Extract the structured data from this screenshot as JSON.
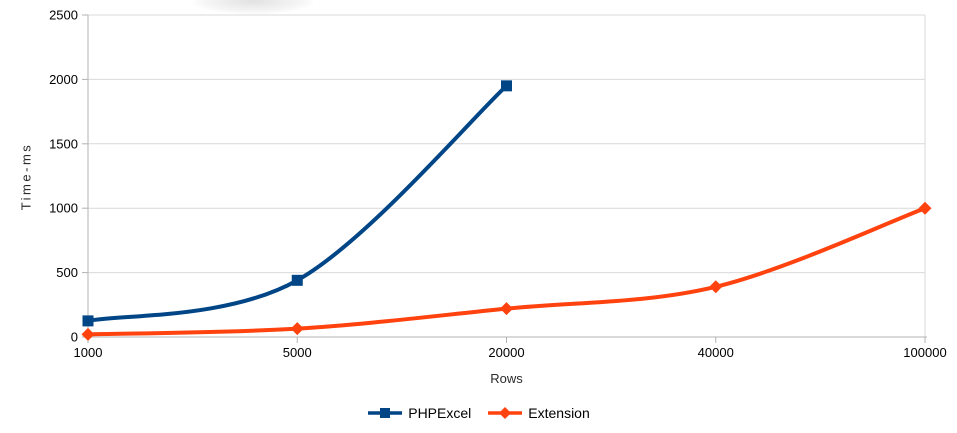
{
  "chart_data": {
    "type": "line",
    "title": "",
    "xlabel": "Rows",
    "ylabel": "Time-ms",
    "categories": [
      "1000",
      "5000",
      "20000",
      "40000",
      "100000"
    ],
    "y_ticks": [
      0,
      500,
      1000,
      1500,
      2000,
      2500
    ],
    "ylim": [
      0,
      2500
    ],
    "grid": "horizontal-only",
    "legend_position": "bottom-center",
    "line_style": "smooth",
    "series": [
      {
        "name": "PHPExcel",
        "color": "#004586",
        "marker": "square",
        "values": [
          125,
          440,
          1950,
          null,
          null
        ]
      },
      {
        "name": "Extension",
        "color": "#FF420E",
        "marker": "diamond",
        "values": [
          20,
          65,
          220,
          390,
          1000
        ]
      }
    ],
    "colors": {
      "gridline": "#d9d9d9",
      "axis": "#b3b3b3",
      "tick_text": "#000000"
    }
  }
}
